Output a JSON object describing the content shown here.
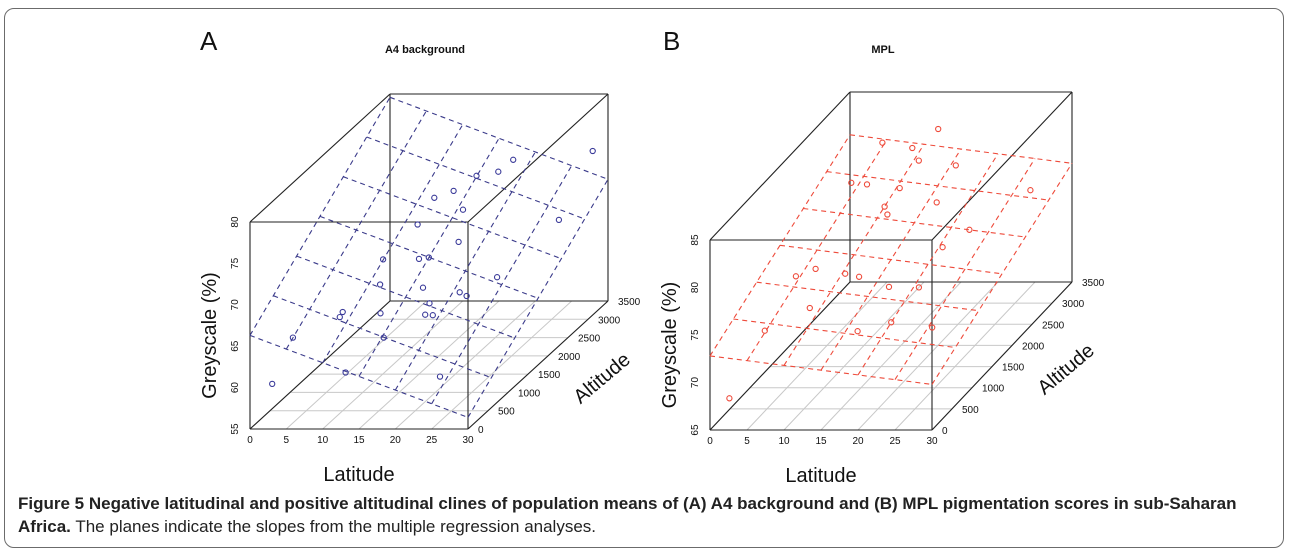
{
  "caption": {
    "label": "Figure 5",
    "bold_text": "Negative latitudinal and positive altitudinal clines of population means of (A) A4 background and (B) MPL pigmentation scores in sub-Saharan Africa.",
    "text": "The planes indicate the slopes from the multiple regression analyses."
  },
  "chart_data": [
    {
      "panel": "A",
      "type": "scatter",
      "title": "A4 background",
      "xlabel": "Latitude",
      "ylabel": "Altitude",
      "zlabel": "Greyscale (%)",
      "xlim": [
        0,
        30
      ],
      "ylim": [
        0,
        3500
      ],
      "zlim": [
        55,
        80
      ],
      "x_ticks": [
        "0",
        "5",
        "10",
        "15",
        "20",
        "25",
        "30"
      ],
      "y_ticks": [
        "0",
        "500",
        "1000",
        "1500",
        "2000",
        "2500",
        "3000",
        "3500"
      ],
      "z_ticks": [
        "55",
        "60",
        "65",
        "70",
        "75",
        "80"
      ],
      "color": "#3a3a99",
      "plane_color": "#3a3a8a",
      "plane": {
        "intercept": 66.3,
        "slope_lat": -0.33,
        "slope_alt": 0.0038
      },
      "points": [
        {
          "x": 2.5,
          "y": 100,
          "z": 60.0
        },
        {
          "x": 1.5,
          "y": 800,
          "z": 62.5
        },
        {
          "x": 3.0,
          "y": 1700,
          "z": 61.0
        },
        {
          "x": 4.5,
          "y": 1500,
          "z": 62.5
        },
        {
          "x": 4.0,
          "y": 2600,
          "z": 64.0
        },
        {
          "x": 6.0,
          "y": 3100,
          "z": 66.0
        },
        {
          "x": 8.0,
          "y": 1800,
          "z": 64.5
        },
        {
          "x": 9.5,
          "y": 2500,
          "z": 64.5
        },
        {
          "x": 10.5,
          "y": 2700,
          "z": 71.0
        },
        {
          "x": 11.5,
          "y": 3000,
          "z": 70.5
        },
        {
          "x": 13.0,
          "y": 3300,
          "z": 71.0
        },
        {
          "x": 12.5,
          "y": 2200,
          "z": 66.0
        },
        {
          "x": 13.0,
          "y": 900,
          "z": 65.0
        },
        {
          "x": 11.5,
          "y": 300,
          "z": 60.5
        },
        {
          "x": 14.0,
          "y": 800,
          "z": 62.5
        },
        {
          "x": 15.0,
          "y": 1600,
          "z": 65.0
        },
        {
          "x": 15.0,
          "y": 2600,
          "z": 70.0
        },
        {
          "x": 15.5,
          "y": 2400,
          "z": 67.0
        },
        {
          "x": 16.0,
          "y": 3300,
          "z": 71.5
        },
        {
          "x": 17.5,
          "y": 3400,
          "z": 72.5
        },
        {
          "x": 17.0,
          "y": 1400,
          "z": 64.0
        },
        {
          "x": 17.5,
          "y": 1200,
          "z": 63.5
        },
        {
          "x": 18.0,
          "y": 1300,
          "z": 63.0
        },
        {
          "x": 19.5,
          "y": 1700,
          "z": 64.0
        },
        {
          "x": 21.0,
          "y": 1600,
          "z": 64.0
        },
        {
          "x": 23.0,
          "y": 2000,
          "z": 64.5
        },
        {
          "x": 24.5,
          "y": 300,
          "z": 60.0
        },
        {
          "x": 26.0,
          "y": 3000,
          "z": 67.0
        },
        {
          "x": 29.0,
          "y": 3300,
          "z": 74.0
        }
      ]
    },
    {
      "panel": "B",
      "type": "scatter",
      "title": "MPL",
      "xlabel": "Latitude",
      "ylabel": "Altitude",
      "zlabel": "Greyscale (%)",
      "xlim": [
        0,
        30
      ],
      "ylim": [
        0,
        3500
      ],
      "zlim": [
        65,
        85
      ],
      "x_ticks": [
        "0",
        "5",
        "10",
        "15",
        "20",
        "25",
        "30"
      ],
      "y_ticks": [
        "0",
        "500",
        "1000",
        "1500",
        "2000",
        "2500",
        "3000",
        "3500"
      ],
      "z_ticks": [
        "65",
        "70",
        "75",
        "80",
        "85"
      ],
      "color": "#ee4a3a",
      "plane_color": "#ee4a3a",
      "plane": {
        "intercept": 72.8,
        "slope_lat": -0.1,
        "slope_alt": 0.0022
      },
      "points": [
        {
          "x": 1.0,
          "y": 300,
          "z": 67.0
        },
        {
          "x": 2.0,
          "y": 1000,
          "z": 71.0
        },
        {
          "x": 3.5,
          "y": 1500,
          "z": 74.5
        },
        {
          "x": 4.0,
          "y": 1900,
          "z": 73.5
        },
        {
          "x": 4.5,
          "y": 2700,
          "z": 79.0
        },
        {
          "x": 5.0,
          "y": 3000,
          "z": 77.5
        },
        {
          "x": 6.0,
          "y": 3200,
          "z": 81.0
        },
        {
          "x": 7.0,
          "y": 1200,
          "z": 72.5
        },
        {
          "x": 8.0,
          "y": 1900,
          "z": 73.0
        },
        {
          "x": 9.0,
          "y": 2700,
          "z": 76.5
        },
        {
          "x": 9.5,
          "y": 3300,
          "z": 80.0
        },
        {
          "x": 10.5,
          "y": 2800,
          "z": 78.0
        },
        {
          "x": 11.0,
          "y": 2400,
          "z": 77.0
        },
        {
          "x": 11.5,
          "y": 1600,
          "z": 74.0
        },
        {
          "x": 12.0,
          "y": 3000,
          "z": 80.0
        },
        {
          "x": 13.0,
          "y": 3300,
          "z": 82.0
        },
        {
          "x": 14.0,
          "y": 1100,
          "z": 70.5
        },
        {
          "x": 15.0,
          "y": 1700,
          "z": 72.5
        },
        {
          "x": 15.5,
          "y": 2800,
          "z": 76.5
        },
        {
          "x": 17.0,
          "y": 3000,
          "z": 79.5
        },
        {
          "x": 18.0,
          "y": 1200,
          "z": 71.0
        },
        {
          "x": 18.5,
          "y": 1800,
          "z": 72.0
        },
        {
          "x": 19.0,
          "y": 2300,
          "z": 74.0
        },
        {
          "x": 21.0,
          "y": 2600,
          "z": 74.5
        },
        {
          "x": 23.0,
          "y": 1300,
          "z": 70.0
        },
        {
          "x": 26.0,
          "y": 3200,
          "z": 76.0
        }
      ]
    }
  ]
}
